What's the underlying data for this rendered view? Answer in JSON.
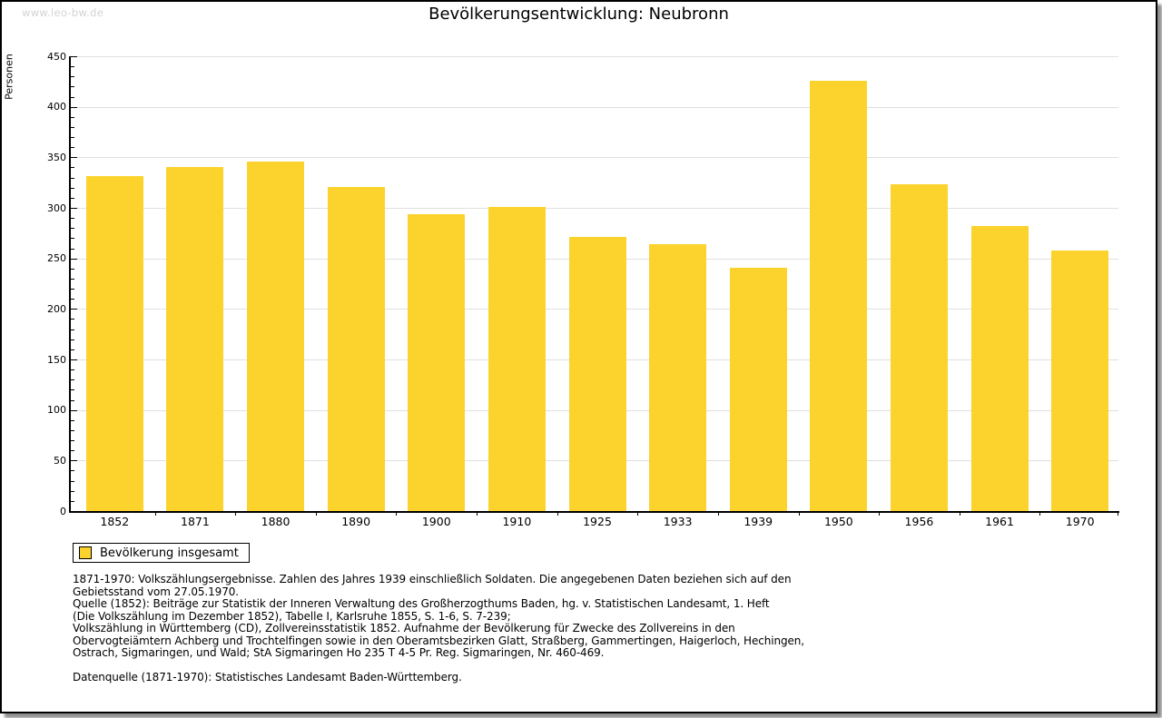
{
  "watermark": "www.leo-bw.de",
  "colors": {
    "bar": "#FCD32D",
    "grid": "#E0E0E0",
    "axis": "#000000",
    "watermark": "#D3D3D3",
    "text": "#000000"
  },
  "chart_data": {
    "type": "bar",
    "title": "Bevölkerungsentwicklung: Neubronn",
    "ylabel": "Personen",
    "xlabel": "",
    "categories": [
      "1852",
      "1871",
      "1880",
      "1890",
      "1900",
      "1910",
      "1925",
      "1933",
      "1939",
      "1950",
      "1956",
      "1961",
      "1970"
    ],
    "values": [
      331,
      340,
      346,
      321,
      294,
      301,
      271,
      264,
      241,
      426,
      323,
      282,
      258
    ],
    "series_name": "Bevölkerung insgesamt",
    "ylim": [
      0,
      450
    ],
    "ytick_step": 50,
    "ytick_minor_step": 10,
    "grid": true,
    "legend_position": "bottom-left"
  },
  "footer": {
    "lines": [
      "1871-1970: Volkszählungsergebnisse. Zahlen des Jahres 1939 einschließlich Soldaten. Die angegebenen Daten beziehen sich auf den",
      "Gebietsstand vom 27.05.1970.",
      "Quelle (1852): Beiträge zur Statistik der Inneren Verwaltung des Großherzogthums Baden, hg. v. Statistischen Landesamt, 1. Heft",
      "(Die Volkszählung im Dezember 1852), Tabelle I, Karlsruhe 1855, S. 1-6, S. 7-239;",
      "Volkszählung in Württemberg (CD), Zollvereinsstatistik 1852. Aufnahme der Bevölkerung für Zwecke des Zollvereins in den",
      "Obervogteiämtern Achberg und Trochtelfingen sowie in den Oberamtsbezirken Glatt, Straßberg, Gammertingen, Haigerloch, Hechingen,",
      "Ostrach, Sigmaringen, und Wald; StA Sigmaringen Ho 235 T 4-5 Pr. Reg. Sigmaringen, Nr. 460-469."
    ],
    "datenquelle": "Datenquelle (1871-1970): Statistisches Landesamt Baden-Württemberg."
  }
}
